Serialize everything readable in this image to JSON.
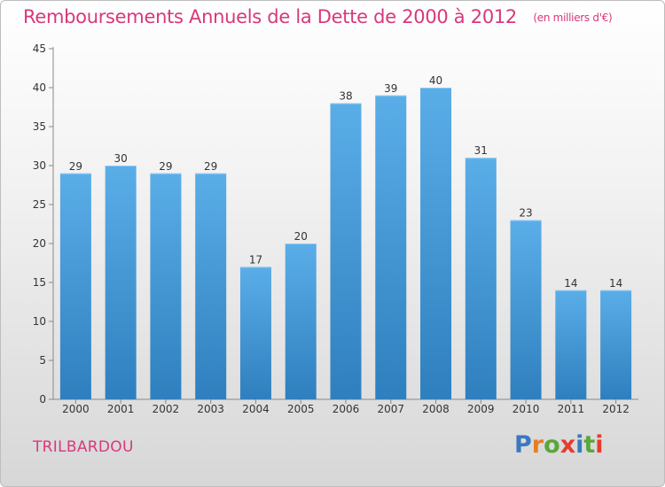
{
  "header": {
    "title": "Remboursements Annuels de la Dette de 2000 à 2012",
    "unit": "(en milliers d'€)"
  },
  "footer": {
    "commune": "TRILBARDOU",
    "logo_text": "Proxiti",
    "logo_colors": [
      "#3a78c2",
      "#e87e21",
      "#5aa63c",
      "#e63b2e",
      "#3a78c2",
      "#5aa63c",
      "#e63b2e"
    ]
  },
  "colors": {
    "bar_light": "#5aaee8",
    "bar_dark": "#2f7fbe",
    "title": "#d8387c"
  },
  "chart_data": {
    "type": "bar",
    "title": "Remboursements Annuels de la Dette de 2000 à 2012",
    "categories": [
      "2000",
      "2001",
      "2002",
      "2003",
      "2004",
      "2005",
      "2006",
      "2007",
      "2008",
      "2009",
      "2010",
      "2011",
      "2012"
    ],
    "values": [
      29,
      30,
      29,
      29,
      17,
      20,
      38,
      39,
      40,
      31,
      23,
      14,
      14
    ],
    "ylim": [
      0,
      45
    ],
    "yticks": [
      0,
      5,
      10,
      15,
      20,
      25,
      30,
      35,
      40,
      45
    ],
    "grid": false,
    "xlabel": "",
    "ylabel": ""
  }
}
